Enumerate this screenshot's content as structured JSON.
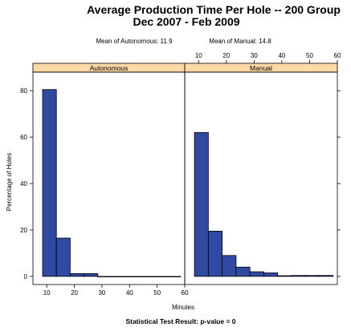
{
  "chart_data": {
    "type": "bar",
    "title_line1": "Average Production Time Per Hole -- 200 Group",
    "title_line2": "Dec 2007 - Feb 2009",
    "ylabel": "Percentage of Holes",
    "xlabel": "Minutes",
    "footer": "Statistical Test Result: p-value = 0",
    "xlim": [
      5,
      60
    ],
    "ylim": [
      -3.5,
      88
    ],
    "bin_width": 5,
    "x_ticks_left": [
      10,
      20,
      30,
      40,
      50,
      60
    ],
    "x_ticks_right": [
      10,
      20,
      30,
      40,
      50,
      60
    ],
    "y_ticks": [
      0,
      20,
      40,
      60,
      80
    ],
    "bar_color": "#2f4aa0",
    "strip_color": "#fcd9a7",
    "panels": [
      {
        "name": "Autonomous",
        "mean_label": "Mean of Autonomous: 11.9",
        "bin_starts": [
          8.5,
          13.5,
          18.5,
          23.5,
          28.5,
          33.5,
          38.5,
          43.5,
          48.5,
          53.5
        ],
        "values": [
          80.5,
          16.5,
          1.2,
          1.2,
          0,
          0,
          0,
          0,
          0,
          0
        ]
      },
      {
        "name": "Manual",
        "mean_label": "Mean of Manual: 14.8",
        "bin_starts": [
          8.5,
          13.5,
          18.5,
          23.5,
          28.5,
          33.5,
          38.5,
          43.5,
          48.5,
          53.5
        ],
        "values": [
          62,
          19.5,
          9,
          4,
          2,
          1.5,
          0.3,
          0.4,
          0.4,
          0.4
        ]
      }
    ]
  }
}
